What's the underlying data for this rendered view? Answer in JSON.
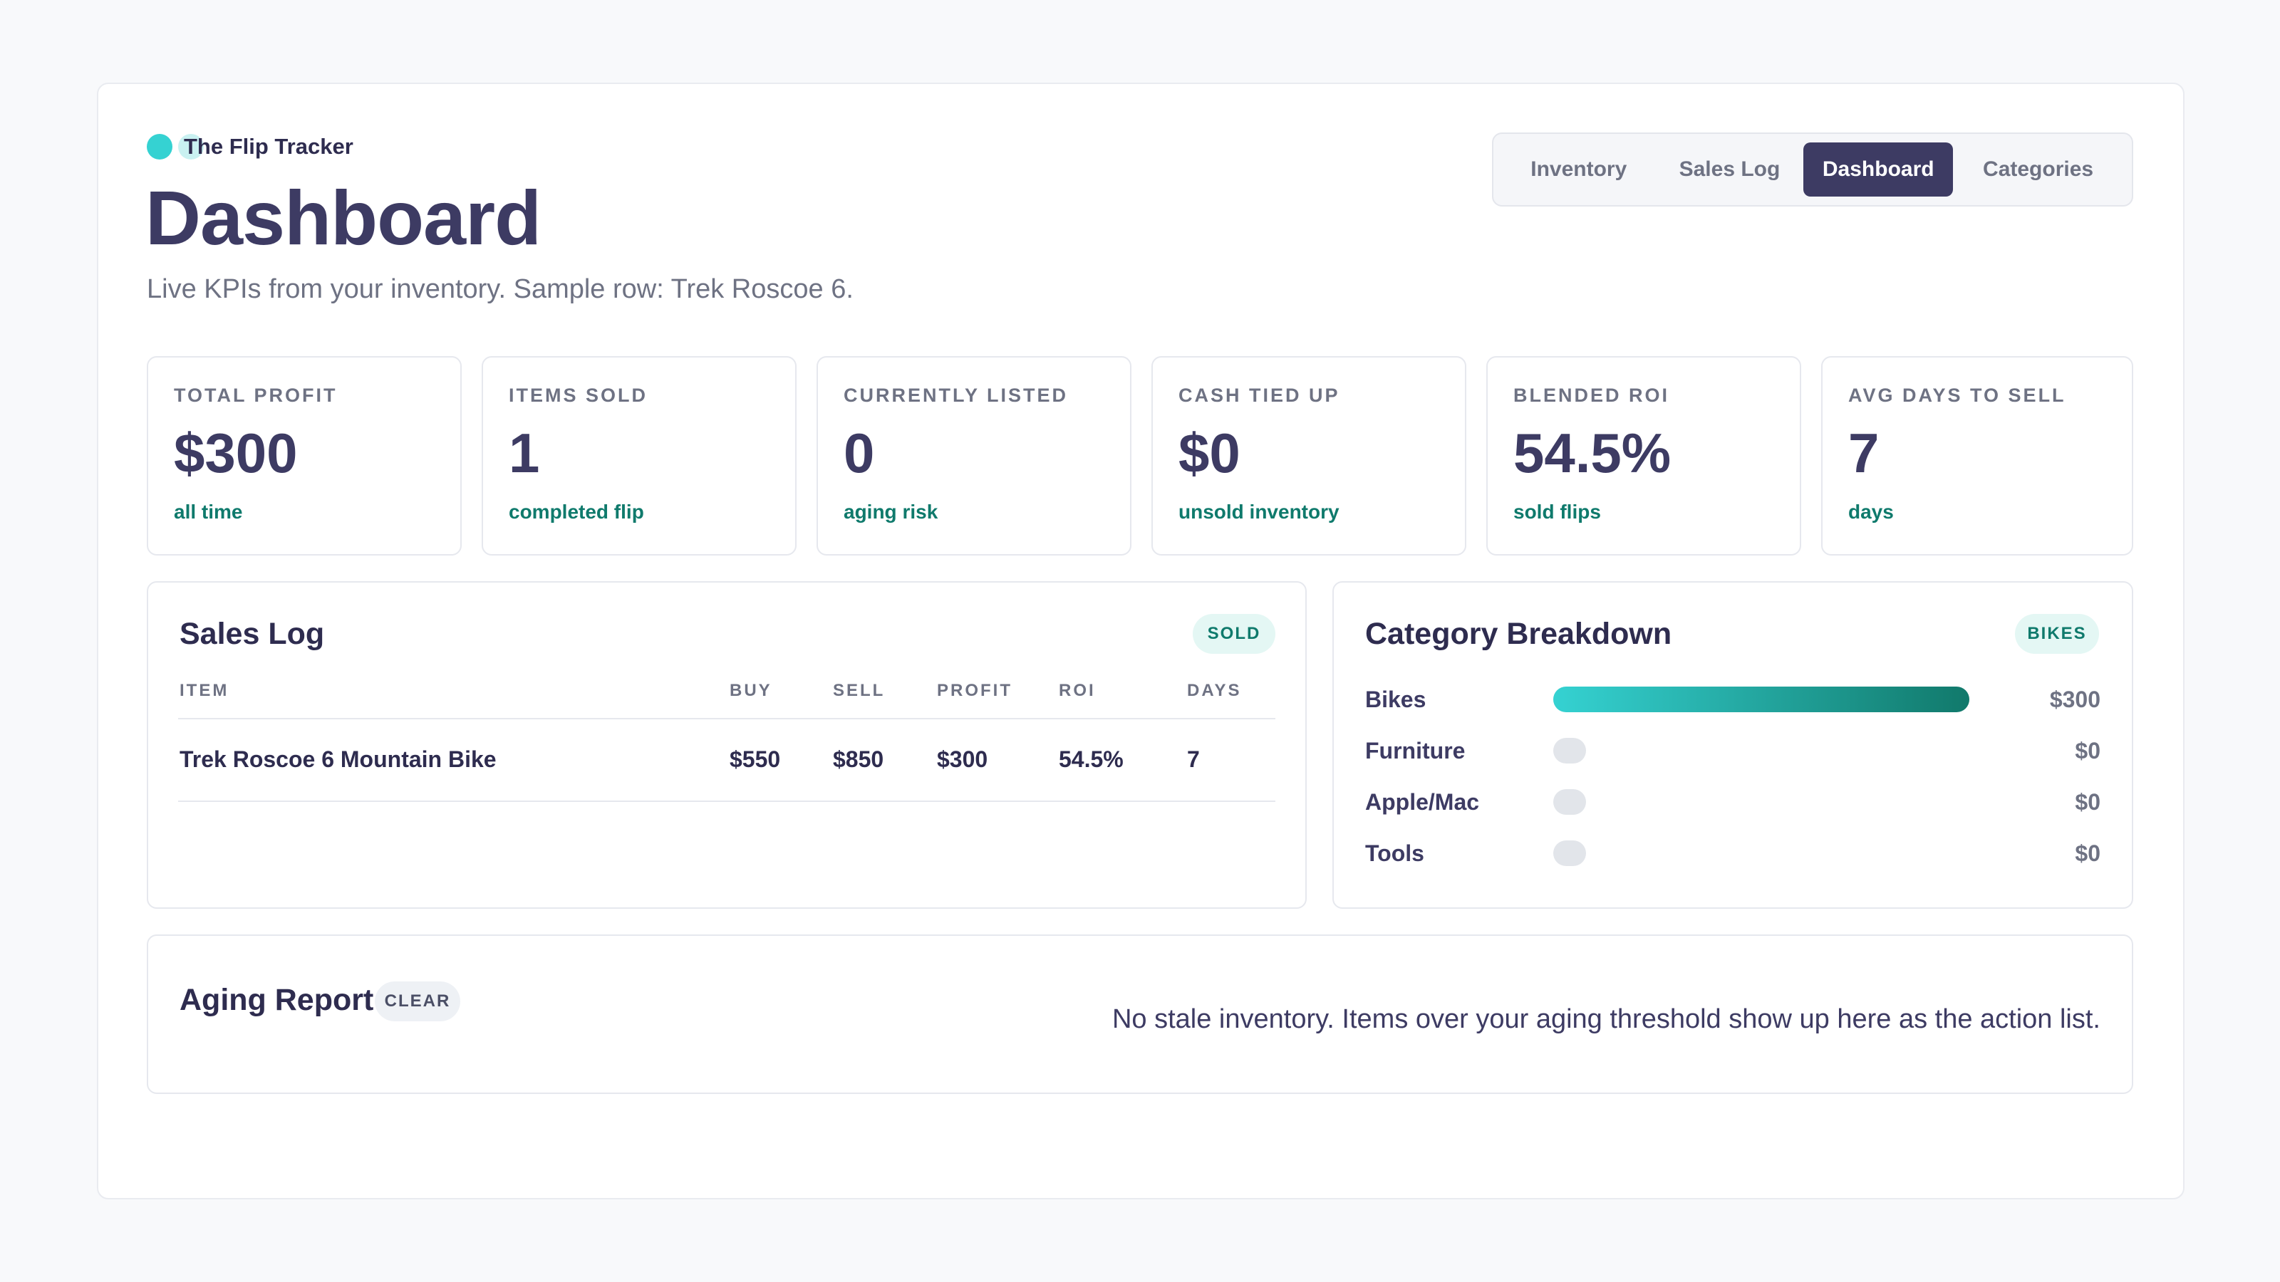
{
  "brand": {
    "name": "The Flip Tracker"
  },
  "page": {
    "title": "Dashboard",
    "subtitle": "Live KPIs from your inventory. Sample row: Trek Roscoe 6."
  },
  "tabs": [
    {
      "label": "Inventory",
      "active": false
    },
    {
      "label": "Sales Log",
      "active": false
    },
    {
      "label": "Dashboard",
      "active": true
    },
    {
      "label": "Categories",
      "active": false
    }
  ],
  "kpis": [
    {
      "label": "TOTAL PROFIT",
      "value": "$300",
      "note": "all time"
    },
    {
      "label": "ITEMS SOLD",
      "value": "1",
      "note": "completed flip"
    },
    {
      "label": "CURRENTLY LISTED",
      "value": "0",
      "note": "aging risk"
    },
    {
      "label": "CASH TIED UP",
      "value": "$0",
      "note": "unsold inventory"
    },
    {
      "label": "BLENDED ROI",
      "value": "54.5%",
      "note": "sold flips"
    },
    {
      "label": "AVG DAYS TO SELL",
      "value": "7",
      "note": "days"
    }
  ],
  "sales_log": {
    "title": "Sales Log",
    "badge": "SOLD",
    "columns": [
      "ITEM",
      "BUY",
      "SELL",
      "PROFIT",
      "ROI",
      "DAYS"
    ],
    "rows": [
      [
        "Trek Roscoe 6 Mountain Bike",
        "$550",
        "$850",
        "$300",
        "54.5%",
        "7"
      ]
    ]
  },
  "category_breakdown": {
    "title": "Category Breakdown",
    "badge": "BIKES",
    "items": [
      {
        "name": "Bikes",
        "value": "$300",
        "share": 1.0
      },
      {
        "name": "Furniture",
        "value": "$0",
        "share": 0
      },
      {
        "name": "Apple/Mac",
        "value": "$0",
        "share": 0
      },
      {
        "name": "Tools",
        "value": "$0",
        "share": 0
      }
    ]
  },
  "aging_report": {
    "title": "Aging Report",
    "badge": "CLEAR",
    "message": "No stale inventory. Items over your aging threshold show up here as the action list."
  },
  "colors": {
    "accent": "#35d2d2",
    "accent_dark": "#11796b",
    "primary": "#3d3b63",
    "positive_text": "#0f7a6c"
  }
}
